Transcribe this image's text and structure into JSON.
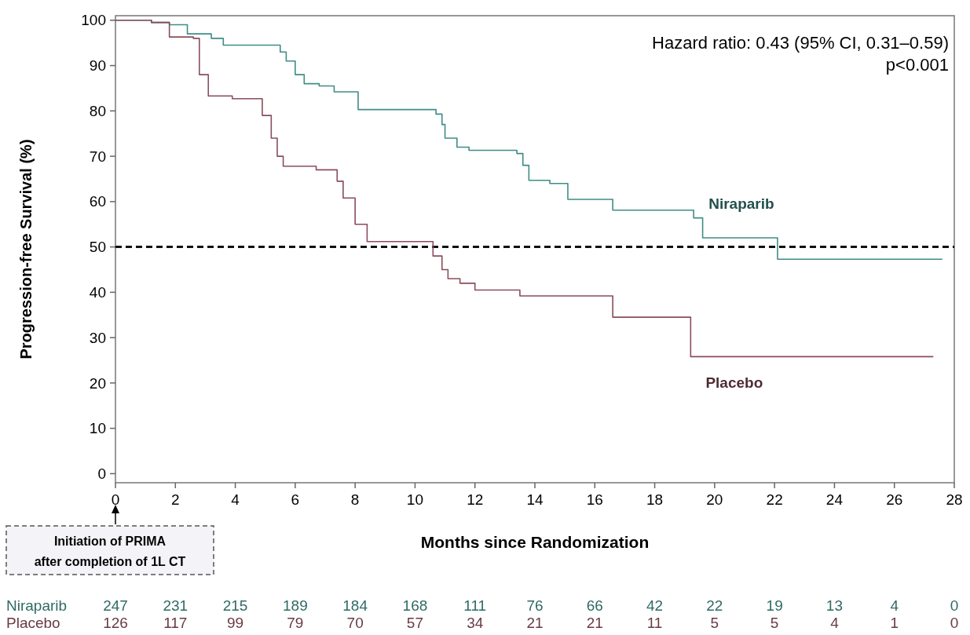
{
  "chart_data": {
    "type": "step",
    "xlabel": "Months since Randomization",
    "ylabel": "Progression-free Survival (%)",
    "xlim": [
      0,
      28
    ],
    "ylim": [
      -2,
      101
    ],
    "xticks": [
      0,
      2,
      4,
      6,
      8,
      10,
      12,
      14,
      16,
      18,
      20,
      22,
      24,
      26,
      28
    ],
    "yticks": [
      0,
      10,
      20,
      30,
      40,
      50,
      60,
      70,
      80,
      90,
      100
    ],
    "series": [
      {
        "name": "Niraparib",
        "color": "#3f8d86",
        "x": [
          0,
          1.2,
          1.8,
          2.4,
          3.2,
          3.6,
          5.3,
          5.5,
          5.7,
          6.0,
          6.3,
          6.8,
          7.3,
          8.1,
          10.7,
          10.9,
          11.0,
          11.4,
          11.8,
          13.4,
          13.6,
          13.8,
          14.5,
          15.1,
          16.3,
          16.6,
          19.1,
          19.3,
          19.6,
          21.9,
          22.1,
          27.6
        ],
        "values": [
          100,
          99.5,
          99,
          97,
          96,
          94.5,
          94.5,
          93,
          91,
          88,
          86,
          85.5,
          84.2,
          80.3,
          79.3,
          77,
          74,
          72,
          71.3,
          70.6,
          68,
          64.7,
          64,
          60.5,
          60.5,
          58.1,
          58.1,
          56.4,
          52,
          52,
          47.3,
          47.3
        ]
      },
      {
        "name": "Placebo",
        "color": "#8a4d5c",
        "x": [
          0,
          1.2,
          1.8,
          2.6,
          2.8,
          3.1,
          3.9,
          4.7,
          4.9,
          5.2,
          5.4,
          5.6,
          6.7,
          7.4,
          7.6,
          8.0,
          8.4,
          10.3,
          10.6,
          10.9,
          11.1,
          11.5,
          12.0,
          13.3,
          13.5,
          16.6,
          19.2,
          27.3
        ],
        "values": [
          100,
          99.5,
          96.3,
          96,
          88,
          83.3,
          82.7,
          82.7,
          79,
          74,
          70,
          67.8,
          67,
          64.5,
          60.8,
          55,
          51.2,
          51.2,
          48,
          45,
          43,
          42,
          40.5,
          40.5,
          39.2,
          34.5,
          25.8,
          25.8
        ]
      }
    ],
    "ref_lines": [
      {
        "axis": "y",
        "value": 50,
        "line_style": "dashed",
        "color": "#111111"
      }
    ],
    "annotations": [
      "Hazard ratio: 0.43 (95% CI, 0.31–0.59)",
      "p<0.001",
      "Initiation of PRIMA after completion of 1L CT",
      "Niraparib 247 231 215 189 184 168 111 76 66 42 22 19 13 4 0",
      "Placebo 126 117 99 79 70 57 34 21 21 11 5 5 4 1 0"
    ]
  }
}
